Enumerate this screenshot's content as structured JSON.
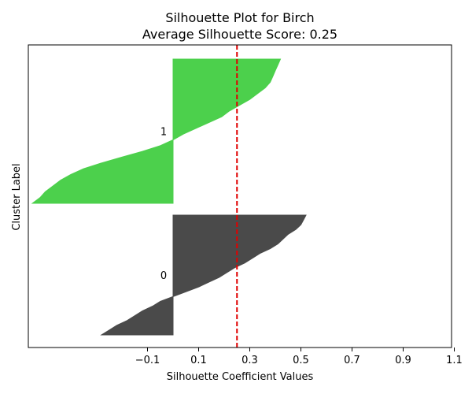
{
  "chart_data": {
    "type": "area",
    "title": "Silhouette Plot for Birch",
    "subtitle": "Average Silhouette Score: 0.25",
    "xlabel": "Silhouette Coefficient Values",
    "ylabel": "Cluster Label",
    "xlim": [
      -0.2,
      1.1
    ],
    "x_ticks": [
      "−0.1",
      "0.1",
      "0.3",
      "0.5",
      "0.7",
      "0.9",
      "1.1"
    ],
    "x_tick_values": [
      -0.1,
      0.1,
      0.3,
      0.5,
      0.7,
      0.9,
      1.1
    ],
    "average_score": 0.25,
    "average_line_color": "#e00000",
    "grid": false,
    "series": [
      {
        "label": "0",
        "color": "#4a4a4a",
        "values": [
          -0.28,
          -0.25,
          -0.22,
          -0.18,
          -0.15,
          -0.12,
          -0.08,
          -0.05,
          0.0,
          0.05,
          0.1,
          0.14,
          0.18,
          0.21,
          0.24,
          0.28,
          0.31,
          0.34,
          0.38,
          0.41,
          0.43,
          0.45,
          0.48,
          0.5,
          0.51,
          0.52
        ]
      },
      {
        "label": "1",
        "color": "#4cd04c",
        "values": [
          -0.55,
          -0.52,
          -0.5,
          -0.47,
          -0.44,
          -0.4,
          -0.35,
          -0.28,
          -0.2,
          -0.12,
          -0.05,
          0.0,
          0.04,
          0.09,
          0.14,
          0.19,
          0.22,
          0.26,
          0.3,
          0.33,
          0.36,
          0.38,
          0.39,
          0.4,
          0.41,
          0.42
        ]
      }
    ]
  }
}
